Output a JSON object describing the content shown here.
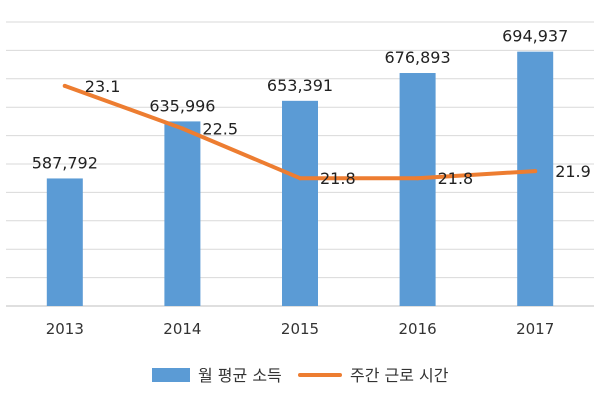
{
  "chart_data": {
    "type": "bar",
    "categories": [
      "2013",
      "2014",
      "2015",
      "2016",
      "2017"
    ],
    "series": [
      {
        "name": "월 평균 소득",
        "type": "bar",
        "axis": "left",
        "values": [
          587792,
          635996,
          653391,
          676893,
          694937
        ],
        "labels": [
          "587,792",
          "635,996",
          "653,391",
          "676,893",
          "694,937"
        ],
        "color": "#5B9BD5"
      },
      {
        "name": "주간 근로 시간",
        "type": "line",
        "axis": "right",
        "values": [
          23.1,
          22.5,
          21.8,
          21.8,
          21.9
        ],
        "labels": [
          "23.1",
          "22.5",
          "21.8",
          "21.8",
          "21.9"
        ],
        "color": "#ED7D31"
      }
    ],
    "ylim_left": [
      480000,
      720000
    ],
    "ylim_right": [
      20,
      24
    ],
    "grid": true,
    "legend_position": "bottom"
  }
}
